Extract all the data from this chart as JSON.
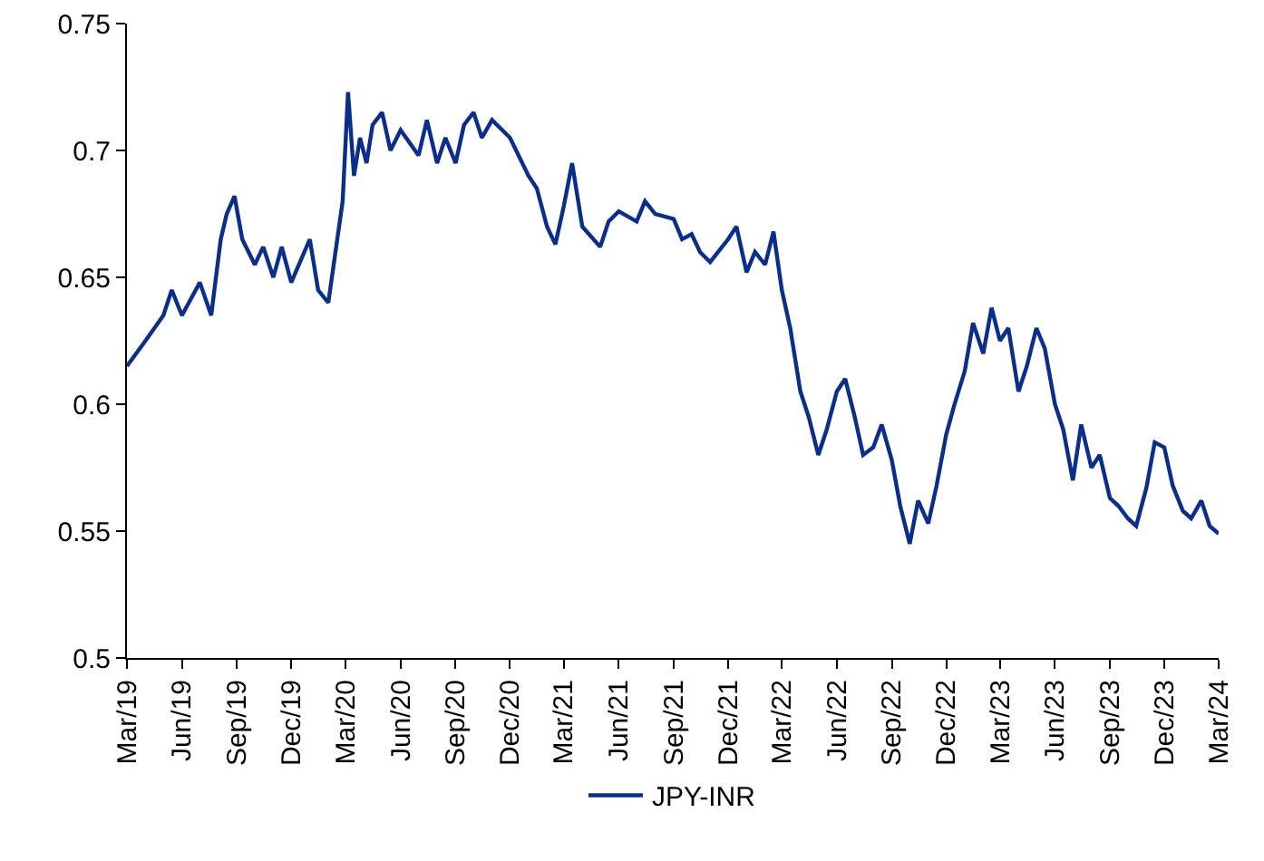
{
  "chart_data": {
    "type": "line",
    "x": [
      "2019-03-01",
      "2019-04-01",
      "2019-05-01",
      "2019-05-15",
      "2019-06-01",
      "2019-07-01",
      "2019-07-20",
      "2019-08-05",
      "2019-08-15",
      "2019-08-28",
      "2019-09-10",
      "2019-10-01",
      "2019-10-15",
      "2019-11-01",
      "2019-11-15",
      "2019-12-01",
      "2020-01-01",
      "2020-01-15",
      "2020-02-01",
      "2020-02-25",
      "2020-03-05",
      "2020-03-15",
      "2020-03-25",
      "2020-04-05",
      "2020-04-15",
      "2020-05-01",
      "2020-05-15",
      "2020-06-01",
      "2020-07-01",
      "2020-07-15",
      "2020-08-01",
      "2020-08-15",
      "2020-09-01",
      "2020-09-15",
      "2020-10-01",
      "2020-10-15",
      "2020-11-01",
      "2020-12-01",
      "2021-01-01",
      "2021-01-15",
      "2021-02-01",
      "2021-02-15",
      "2021-03-01",
      "2021-03-15",
      "2021-04-01",
      "2021-05-01",
      "2021-05-15",
      "2021-06-01",
      "2021-07-01",
      "2021-07-15",
      "2021-08-01",
      "2021-09-01",
      "2021-09-15",
      "2021-10-01",
      "2021-10-15",
      "2021-11-01",
      "2021-12-01",
      "2021-12-15",
      "2022-01-01",
      "2022-01-15",
      "2022-02-01",
      "2022-02-15",
      "2022-03-01",
      "2022-03-15",
      "2022-04-01",
      "2022-04-15",
      "2022-05-01",
      "2022-05-15",
      "2022-06-01",
      "2022-06-15",
      "2022-07-01",
      "2022-07-15",
      "2022-08-01",
      "2022-08-15",
      "2022-09-01",
      "2022-09-15",
      "2022-10-01",
      "2022-10-15",
      "2022-11-01",
      "2022-11-15",
      "2022-12-01",
      "2022-12-15",
      "2023-01-01",
      "2023-01-15",
      "2023-02-01",
      "2023-02-15",
      "2023-03-01",
      "2023-03-15",
      "2023-04-01",
      "2023-04-15",
      "2023-05-01",
      "2023-05-15",
      "2023-06-01",
      "2023-06-15",
      "2023-07-01",
      "2023-07-15",
      "2023-08-01",
      "2023-08-15",
      "2023-09-01",
      "2023-09-15",
      "2023-10-01",
      "2023-10-15",
      "2023-11-01",
      "2023-11-15",
      "2023-12-01",
      "2023-12-15",
      "2024-01-01",
      "2024-01-15",
      "2024-02-01",
      "2024-02-15",
      "2024-03-01"
    ],
    "series": [
      {
        "name": "JPY-INR",
        "color": "#0a2e8a",
        "values": [
          0.615,
          0.625,
          0.635,
          0.645,
          0.635,
          0.648,
          0.635,
          0.665,
          0.675,
          0.682,
          0.665,
          0.655,
          0.662,
          0.65,
          0.662,
          0.648,
          0.665,
          0.645,
          0.64,
          0.68,
          0.723,
          0.69,
          0.705,
          0.695,
          0.71,
          0.715,
          0.7,
          0.708,
          0.698,
          0.712,
          0.695,
          0.705,
          0.695,
          0.71,
          0.715,
          0.705,
          0.712,
          0.705,
          0.69,
          0.685,
          0.67,
          0.663,
          0.678,
          0.695,
          0.67,
          0.662,
          0.672,
          0.676,
          0.672,
          0.68,
          0.675,
          0.673,
          0.665,
          0.667,
          0.66,
          0.656,
          0.665,
          0.67,
          0.652,
          0.66,
          0.655,
          0.668,
          0.645,
          0.63,
          0.605,
          0.595,
          0.58,
          0.59,
          0.605,
          0.61,
          0.595,
          0.58,
          0.583,
          0.592,
          0.578,
          0.56,
          0.545,
          0.562,
          0.553,
          0.568,
          0.588,
          0.6,
          0.613,
          0.632,
          0.62,
          0.638,
          0.625,
          0.63,
          0.605,
          0.615,
          0.63,
          0.622,
          0.6,
          0.59,
          0.57,
          0.592,
          0.575,
          0.58,
          0.563,
          0.56,
          0.555,
          0.552,
          0.567,
          0.585,
          0.583,
          0.568,
          0.558,
          0.555,
          0.562,
          0.552,
          0.549
        ]
      }
    ],
    "xlim": [
      "2019-03-01",
      "2024-03-01"
    ],
    "xticks": [
      {
        "value": "2019-03-01",
        "label": "Mar/19"
      },
      {
        "value": "2019-06-01",
        "label": "Jun/19"
      },
      {
        "value": "2019-09-01",
        "label": "Sep/19"
      },
      {
        "value": "2019-12-01",
        "label": "Dec/19"
      },
      {
        "value": "2020-03-01",
        "label": "Mar/20"
      },
      {
        "value": "2020-06-01",
        "label": "Jun/20"
      },
      {
        "value": "2020-09-01",
        "label": "Sep/20"
      },
      {
        "value": "2020-12-01",
        "label": "Dec/20"
      },
      {
        "value": "2021-03-01",
        "label": "Mar/21"
      },
      {
        "value": "2021-06-01",
        "label": "Jun/21"
      },
      {
        "value": "2021-09-01",
        "label": "Sep/21"
      },
      {
        "value": "2021-12-01",
        "label": "Dec/21"
      },
      {
        "value": "2022-03-01",
        "label": "Mar/22"
      },
      {
        "value": "2022-06-01",
        "label": "Jun/22"
      },
      {
        "value": "2022-09-01",
        "label": "Sep/22"
      },
      {
        "value": "2022-12-01",
        "label": "Dec/22"
      },
      {
        "value": "2023-03-01",
        "label": "Mar/23"
      },
      {
        "value": "2023-06-01",
        "label": "Jun/23"
      },
      {
        "value": "2023-09-01",
        "label": "Sep/23"
      },
      {
        "value": "2023-12-01",
        "label": "Dec/23"
      },
      {
        "value": "2024-03-01",
        "label": "Mar/24"
      }
    ],
    "ylim": [
      0.5,
      0.75
    ],
    "yticks": [
      0.5,
      0.55,
      0.6,
      0.65,
      0.7,
      0.75
    ],
    "grid": false,
    "legend": "bottom",
    "marker": "none",
    "line_style": "solid"
  }
}
